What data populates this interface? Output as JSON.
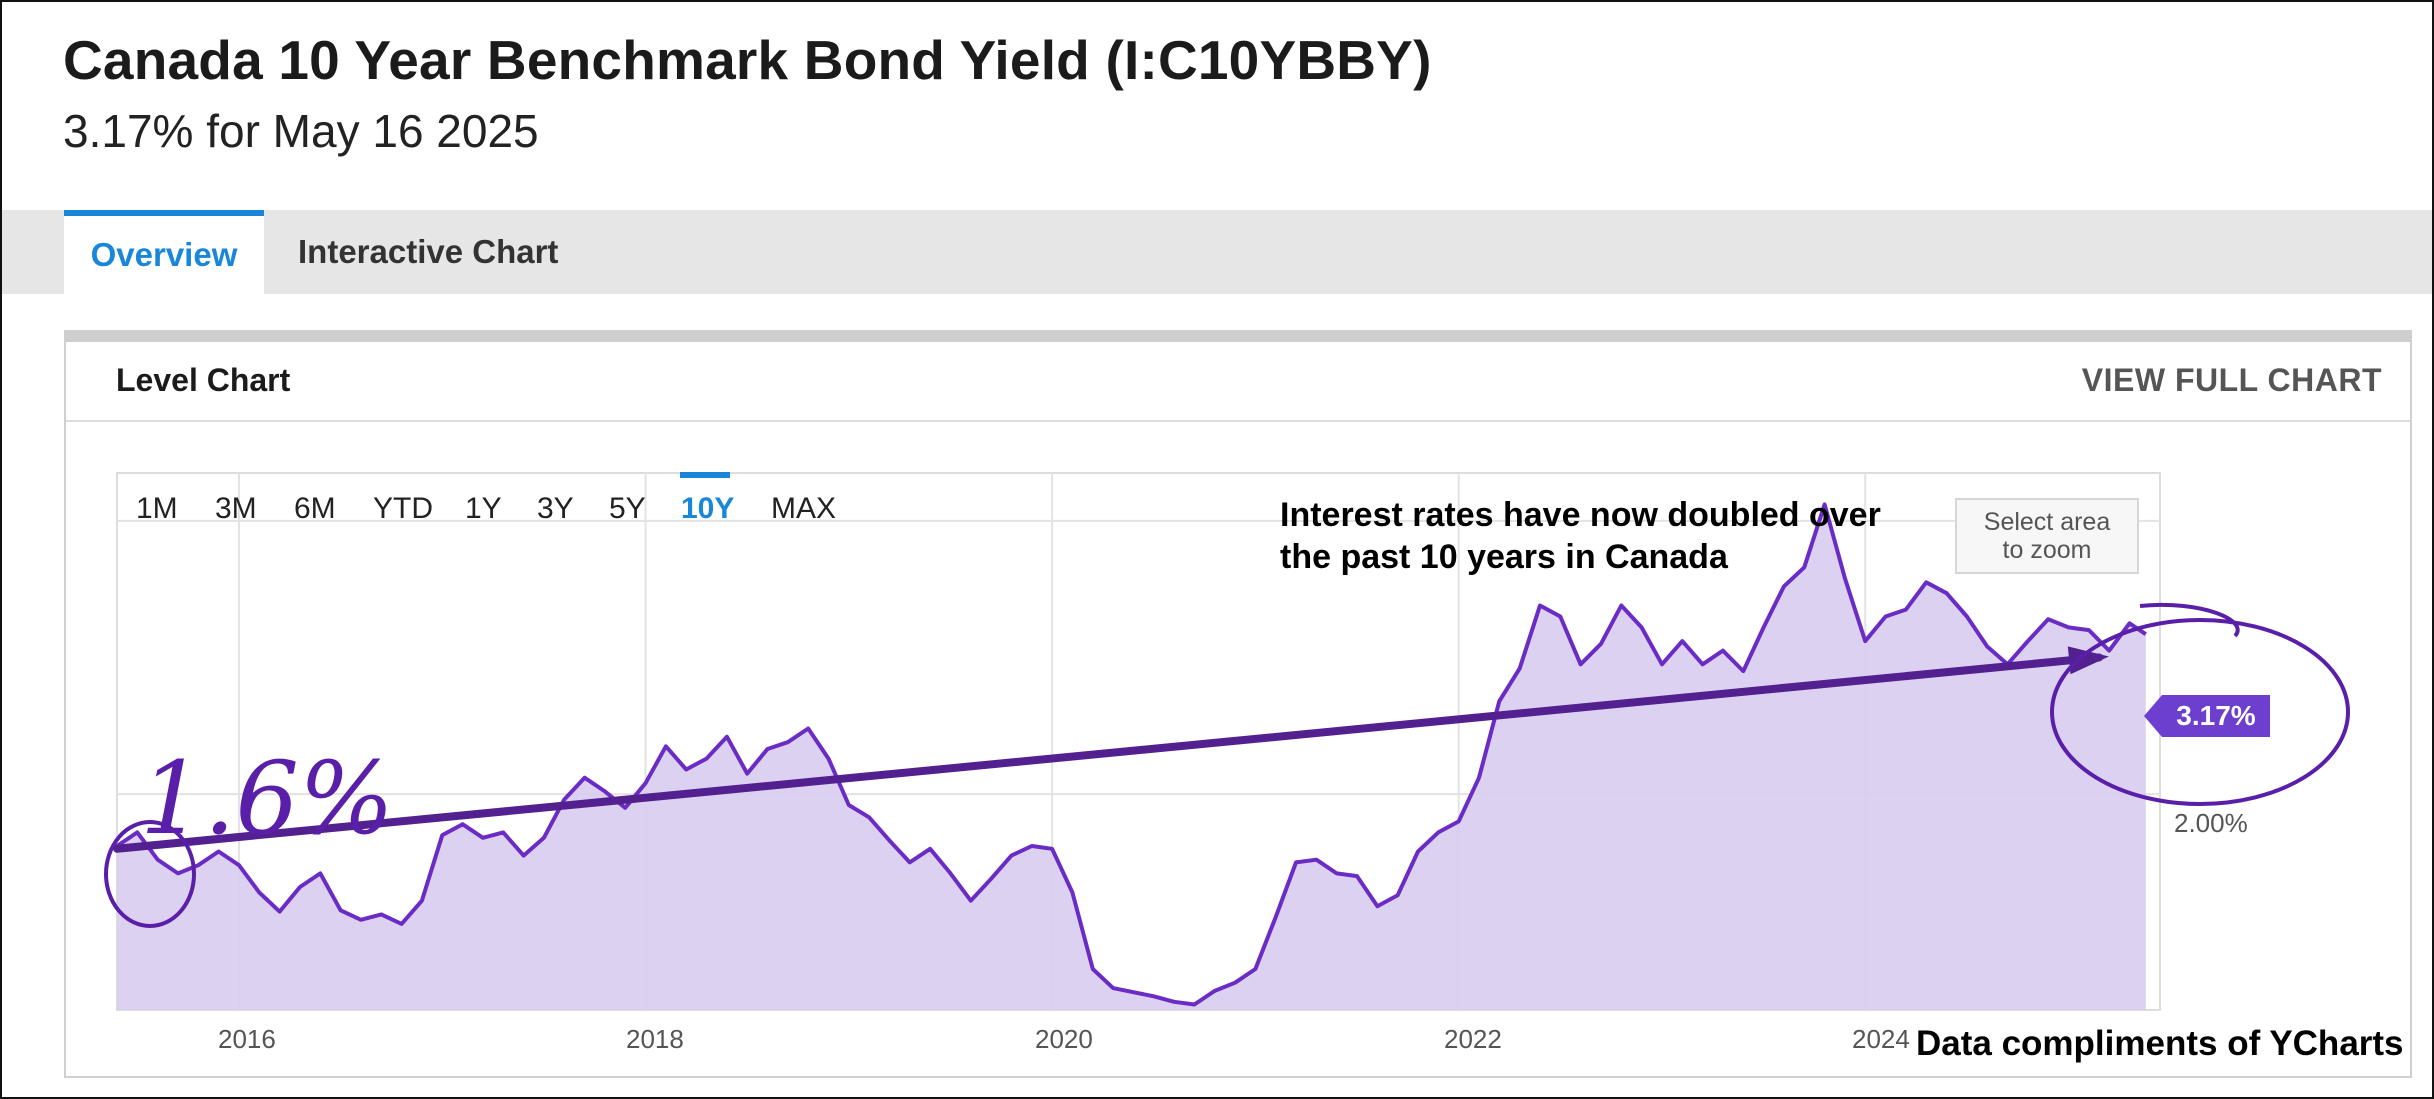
{
  "header": {
    "title": "Canada 10 Year Benchmark Bond Yield (I:C10YBBY)",
    "subtitle": "3.17% for May 16 2025"
  },
  "tabs": [
    {
      "label": "Overview",
      "active": true
    },
    {
      "label": "Interactive Chart",
      "active": false
    }
  ],
  "card": {
    "title": "Level Chart",
    "link": "VIEW FULL CHART"
  },
  "range_buttons": [
    "1M",
    "3M",
    "6M",
    "YTD",
    "1Y",
    "3Y",
    "5Y",
    "10Y",
    "MAX"
  ],
  "range_selected": "10Y",
  "zoom_hint": {
    "line1": "Select area",
    "line2": "to zoom"
  },
  "annotation": {
    "line1": "Interest rates have now doubled over",
    "line2": "the past 10 years in Canada"
  },
  "hand_annotation": "1.6%",
  "credit": "Data compliments of YCharts",
  "colors": {
    "accent": "#1a86d9",
    "series_line": "#6a2cc4",
    "series_fill": "#d9ccf0",
    "trend_line": "#52208f",
    "label_bg": "#6c3fcf"
  },
  "chart_data": {
    "type": "area",
    "x_ticks": [
      "2016",
      "2018",
      "2020",
      "2022",
      "2024"
    ],
    "y_ticks": [
      "2.00%"
    ],
    "last_value_label": "3.17%",
    "series": [
      {
        "values": [
          [
            2015.4,
            1.62
          ],
          [
            2015.5,
            1.72
          ],
          [
            2015.6,
            1.52
          ],
          [
            2015.7,
            1.42
          ],
          [
            2015.8,
            1.48
          ],
          [
            2015.9,
            1.58
          ],
          [
            2016.0,
            1.48
          ],
          [
            2016.1,
            1.28
          ],
          [
            2016.2,
            1.14
          ],
          [
            2016.3,
            1.32
          ],
          [
            2016.4,
            1.42
          ],
          [
            2016.5,
            1.15
          ],
          [
            2016.6,
            1.08
          ],
          [
            2016.7,
            1.12
          ],
          [
            2016.8,
            1.05
          ],
          [
            2016.9,
            1.22
          ],
          [
            2017.0,
            1.7
          ],
          [
            2017.1,
            1.78
          ],
          [
            2017.2,
            1.68
          ],
          [
            2017.3,
            1.72
          ],
          [
            2017.4,
            1.55
          ],
          [
            2017.5,
            1.68
          ],
          [
            2017.6,
            1.96
          ],
          [
            2017.7,
            2.12
          ],
          [
            2017.8,
            2.02
          ],
          [
            2017.9,
            1.9
          ],
          [
            2018.0,
            2.08
          ],
          [
            2018.1,
            2.35
          ],
          [
            2018.2,
            2.18
          ],
          [
            2018.3,
            2.26
          ],
          [
            2018.4,
            2.42
          ],
          [
            2018.5,
            2.15
          ],
          [
            2018.6,
            2.33
          ],
          [
            2018.7,
            2.38
          ],
          [
            2018.8,
            2.48
          ],
          [
            2018.9,
            2.26
          ],
          [
            2019.0,
            1.92
          ],
          [
            2019.1,
            1.83
          ],
          [
            2019.2,
            1.66
          ],
          [
            2019.3,
            1.5
          ],
          [
            2019.4,
            1.6
          ],
          [
            2019.5,
            1.42
          ],
          [
            2019.6,
            1.22
          ],
          [
            2019.7,
            1.38
          ],
          [
            2019.8,
            1.55
          ],
          [
            2019.9,
            1.62
          ],
          [
            2020.0,
            1.6
          ],
          [
            2020.1,
            1.28
          ],
          [
            2020.2,
            0.72
          ],
          [
            2020.3,
            0.58
          ],
          [
            2020.4,
            0.55
          ],
          [
            2020.5,
            0.52
          ],
          [
            2020.6,
            0.48
          ],
          [
            2020.7,
            0.46
          ],
          [
            2020.8,
            0.56
          ],
          [
            2020.9,
            0.62
          ],
          [
            2021.0,
            0.72
          ],
          [
            2021.1,
            1.1
          ],
          [
            2021.2,
            1.5
          ],
          [
            2021.3,
            1.52
          ],
          [
            2021.4,
            1.42
          ],
          [
            2021.5,
            1.4
          ],
          [
            2021.6,
            1.18
          ],
          [
            2021.7,
            1.26
          ],
          [
            2021.8,
            1.58
          ],
          [
            2021.9,
            1.72
          ],
          [
            2022.0,
            1.8
          ],
          [
            2022.1,
            2.12
          ],
          [
            2022.2,
            2.68
          ],
          [
            2022.3,
            2.92
          ],
          [
            2022.4,
            3.38
          ],
          [
            2022.5,
            3.3
          ],
          [
            2022.6,
            2.95
          ],
          [
            2022.7,
            3.1
          ],
          [
            2022.8,
            3.38
          ],
          [
            2022.9,
            3.22
          ],
          [
            2023.0,
            2.95
          ],
          [
            2023.1,
            3.12
          ],
          [
            2023.2,
            2.95
          ],
          [
            2023.3,
            3.05
          ],
          [
            2023.4,
            2.9
          ],
          [
            2023.5,
            3.22
          ],
          [
            2023.6,
            3.52
          ],
          [
            2023.7,
            3.66
          ],
          [
            2023.8,
            4.12
          ],
          [
            2023.9,
            3.58
          ],
          [
            2024.0,
            3.12
          ],
          [
            2024.1,
            3.3
          ],
          [
            2024.2,
            3.35
          ],
          [
            2024.3,
            3.55
          ],
          [
            2024.4,
            3.47
          ],
          [
            2024.5,
            3.3
          ],
          [
            2024.6,
            3.08
          ],
          [
            2024.7,
            2.95
          ],
          [
            2024.8,
            3.12
          ],
          [
            2024.9,
            3.28
          ],
          [
            2025.0,
            3.22
          ],
          [
            2025.1,
            3.2
          ],
          [
            2025.2,
            3.05
          ],
          [
            2025.3,
            3.25
          ],
          [
            2025.38,
            3.17
          ]
        ]
      }
    ],
    "trend_line": [
      [
        2015.4,
        1.6
      ],
      [
        2025.15,
        3.0
      ]
    ],
    "x_range": [
      2015.4,
      2025.45
    ],
    "y_range": [
      0.42,
      4.35
    ],
    "grid": true
  }
}
